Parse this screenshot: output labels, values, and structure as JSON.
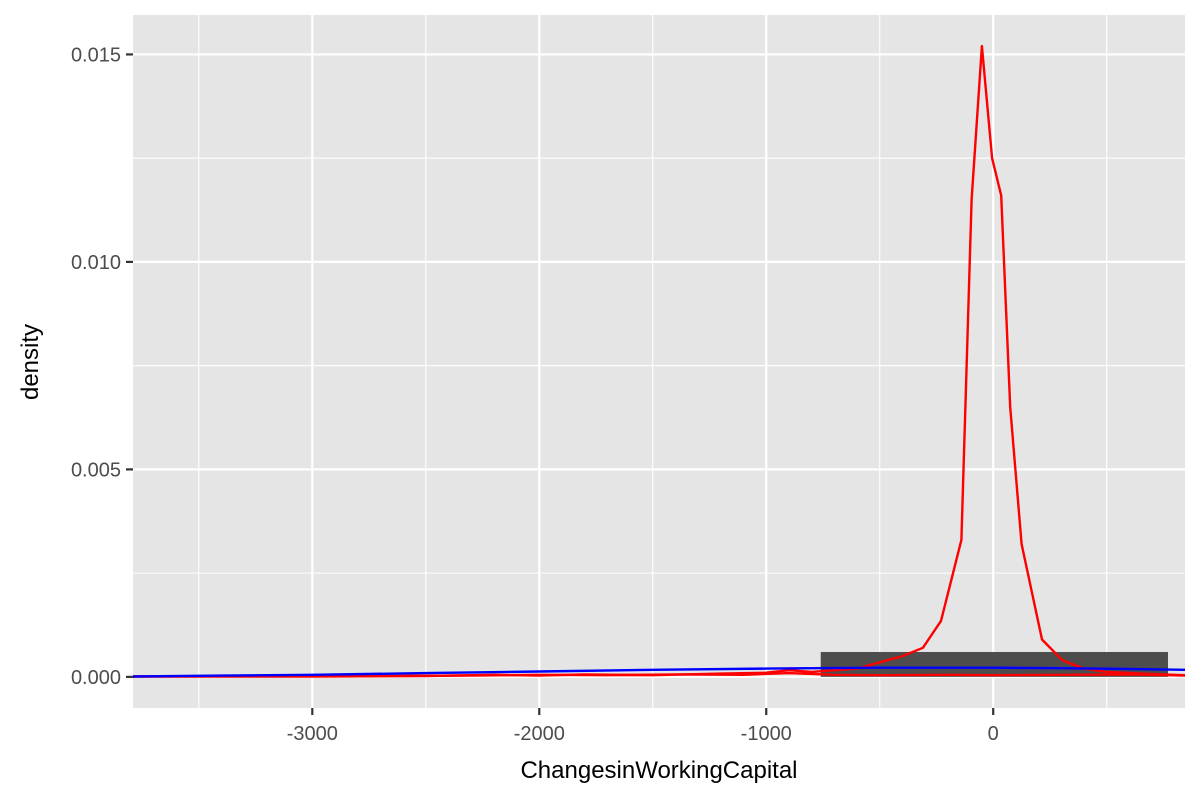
{
  "chart_data": {
    "type": "line",
    "xlabel": "ChangesinWorkingCapital",
    "ylabel": "density",
    "xlim": [
      -3790,
      845
    ],
    "ylim": [
      -0.00075,
      0.01595
    ],
    "x_ticks": [
      -3000,
      -2000,
      -1000,
      0
    ],
    "x_tick_labels": [
      "-3000",
      "-2000",
      "-1000",
      "0"
    ],
    "x_minor_ticks": [
      -3500,
      -2500,
      -1500,
      -500,
      500
    ],
    "y_ticks": [
      0.0,
      0.005,
      0.01,
      0.015
    ],
    "y_tick_labels": [
      "0.000",
      "0.005",
      "0.010",
      "0.015"
    ],
    "y_minor_ticks": [
      0.0025,
      0.0075,
      0.0125
    ],
    "grid": true,
    "panel_background": "#e5e5e5",
    "grid_color": "#ffffff",
    "bar": {
      "x_start": -760,
      "x_end": 770,
      "height": 0.0006,
      "color": "#4d4d4d"
    },
    "series": [
      {
        "color": "#ff0000",
        "points": [
          [
            -3790,
            1e-05
          ],
          [
            -3000,
            1e-05
          ],
          [
            -2500,
            2e-05
          ],
          [
            -2200,
            5e-05
          ],
          [
            -2000,
            3e-05
          ],
          [
            -1800,
            6e-05
          ],
          [
            -1500,
            4e-05
          ],
          [
            -1200,
            8e-05
          ],
          [
            -1000,
            0.0001
          ],
          [
            -900,
            0.00016
          ],
          [
            -800,
            0.00012
          ],
          [
            -600,
            0.0002
          ],
          [
            -500,
            0.00035
          ],
          [
            -400,
            0.0005
          ],
          [
            -310,
            0.0007
          ],
          [
            -230,
            0.00135
          ],
          [
            -140,
            0.0033
          ],
          [
            -95,
            0.0115
          ],
          [
            -50,
            0.0152
          ],
          [
            -5,
            0.0125
          ],
          [
            35,
            0.0116
          ],
          [
            75,
            0.0065
          ],
          [
            125,
            0.0032
          ],
          [
            215,
            0.0009
          ],
          [
            305,
            0.0004
          ],
          [
            400,
            0.0002
          ],
          [
            500,
            0.00012
          ],
          [
            650,
            8e-05
          ],
          [
            845,
            4e-05
          ]
        ]
      },
      {
        "color": "#ff0000",
        "points": [
          [
            -3790,
            1e-05
          ],
          [
            -2800,
            2e-05
          ],
          [
            -2300,
            3e-05
          ],
          [
            -2000,
            5e-05
          ],
          [
            -1700,
            4e-05
          ],
          [
            -1400,
            6e-05
          ],
          [
            -1100,
            5e-05
          ],
          [
            -900,
            9e-05
          ],
          [
            -700,
            5e-05
          ],
          [
            -500,
            4e-05
          ],
          [
            -200,
            5e-05
          ],
          [
            0,
            4e-05
          ],
          [
            300,
            5e-05
          ],
          [
            600,
            6e-05
          ],
          [
            845,
            3e-05
          ]
        ]
      },
      {
        "color": "#0000ff",
        "points": [
          [
            -3790,
            1e-05
          ],
          [
            -3400,
            3e-05
          ],
          [
            -3000,
            5e-05
          ],
          [
            -2500,
            9e-05
          ],
          [
            -2000,
            0.00013
          ],
          [
            -1500,
            0.00017
          ],
          [
            -1000,
            0.0002
          ],
          [
            -500,
            0.00022
          ],
          [
            -200,
            0.00022
          ],
          [
            0,
            0.00022
          ],
          [
            300,
            0.00021
          ],
          [
            600,
            0.00019
          ],
          [
            845,
            0.00017
          ]
        ]
      }
    ]
  }
}
